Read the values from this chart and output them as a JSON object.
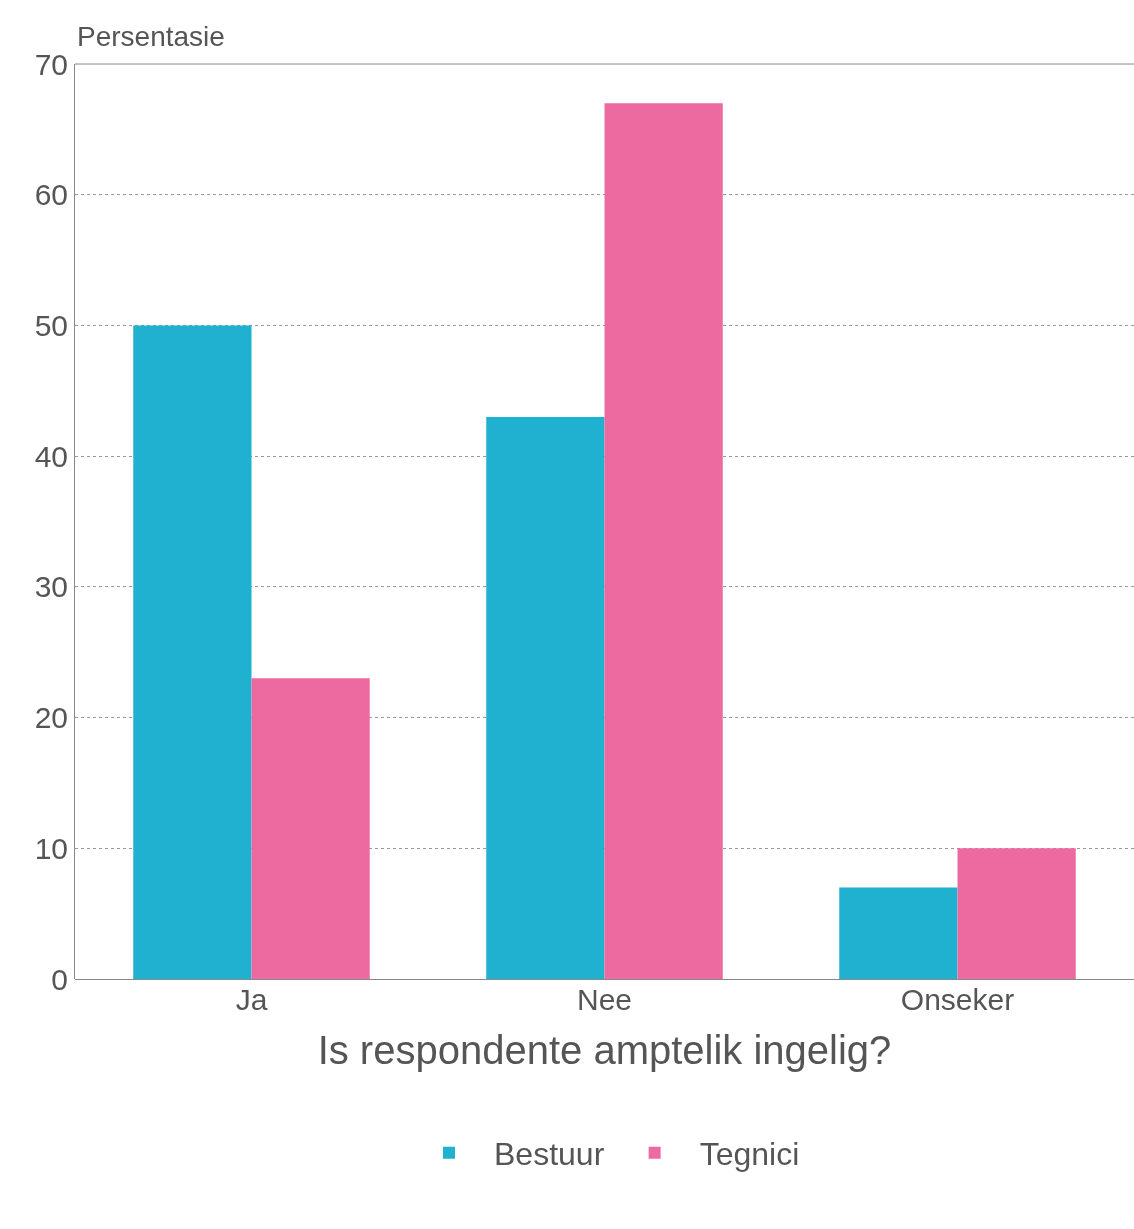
{
  "chart_data": {
    "type": "bar",
    "xlabel": "Is respondente amptelik ingelig?",
    "ylabel": "Persentasie",
    "categories": [
      "Ja",
      "Nee",
      "Onseker"
    ],
    "series": [
      {
        "name": "Bestuur",
        "color": "#20b0d0",
        "values": [
          50,
          43,
          7
        ]
      },
      {
        "name": "Tegnici",
        "color": "#ec6aa0",
        "values": [
          23,
          67,
          10
        ]
      }
    ],
    "ylim": [
      0,
      70
    ],
    "yticks": [
      0,
      10,
      20,
      30,
      40,
      50,
      60,
      70
    ],
    "grid": "y",
    "legend": "bottom"
  }
}
